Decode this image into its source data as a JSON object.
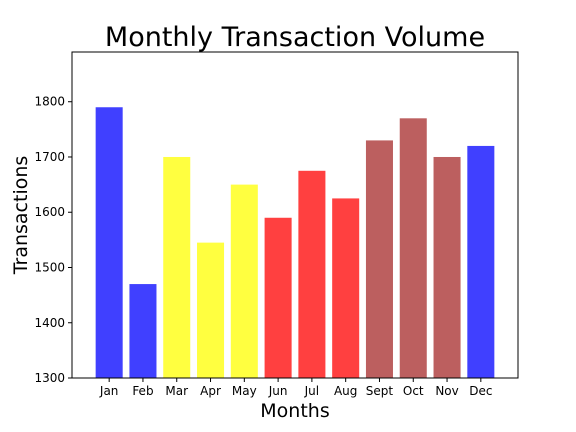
{
  "chart_data": {
    "type": "bar",
    "title": "Monthly Transaction Volume",
    "xlabel": "Months",
    "ylabel": "Transactions",
    "categories": [
      "Jan",
      "Feb",
      "Mar",
      "Apr",
      "May",
      "Jun",
      "Jul",
      "Aug",
      "Sept",
      "Oct",
      "Nov",
      "Dec"
    ],
    "values": [
      1790,
      1470,
      1700,
      1545,
      1650,
      1590,
      1675,
      1625,
      1730,
      1770,
      1700,
      1720
    ],
    "bar_colors": [
      "#4040ff",
      "#4040ff",
      "#ffff40",
      "#ffff40",
      "#ffff40",
      "#ff4040",
      "#ff4040",
      "#ff4040",
      "#bc5f5f",
      "#bc5f5f",
      "#bc5f5f",
      "#4040ff"
    ],
    "ylim": [
      1300,
      1890
    ],
    "yticks": [
      1300,
      1400,
      1500,
      1600,
      1700,
      1800
    ],
    "grid": false,
    "legend": "none"
  }
}
